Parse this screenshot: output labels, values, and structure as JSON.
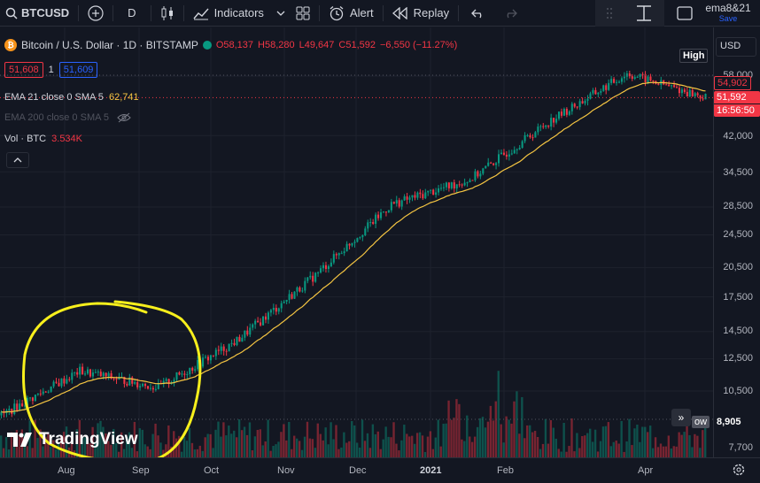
{
  "toolbar": {
    "symbol": "BTCUSD",
    "interval": "D",
    "indicators_label": "Indicators",
    "alert_label": "Alert",
    "replay_label": "Replay",
    "layout_name": "ema8&21",
    "save_label": "Save"
  },
  "legend": {
    "title": "Bitcoin / U.S. Dollar · 1D · BITSTAMP",
    "open": "O58,137",
    "high": "H58,280",
    "low": "L49,647",
    "close": "C51,592",
    "change": "−6,550 (−11.27%)",
    "bid": "51,608",
    "spread": "1",
    "ask": "51,609"
  },
  "indicators": {
    "ema21_label": "EMA 21 close 0 SMA 5",
    "ema21_value": "62,741",
    "ema200_label": "EMA 200 close 0 SMA 5",
    "vol_label": "Vol · BTC",
    "vol_value": "3.534K"
  },
  "price_axis": {
    "currency": "USD",
    "ticks": [
      "58,000",
      "42,000",
      "34,500",
      "28,500",
      "24,500",
      "20,500",
      "17,500",
      "14,500",
      "12,500",
      "10,500",
      "7,700"
    ],
    "high_tag": "High",
    "ema_tag": "54,902",
    "price_tag": "51,592",
    "countdown": "16:56:50",
    "vol_tag": "8,905",
    "vol_tag_prefix": "ow"
  },
  "time_axis": {
    "labels": [
      "Aug",
      "Sep",
      "Oct",
      "Nov",
      "Dec",
      "2021",
      "Feb",
      "Apr"
    ]
  },
  "branding": {
    "logo_text": "TradingView"
  },
  "colors": {
    "up": "#089981",
    "down": "#f23645",
    "ema": "#f5c542",
    "annotation": "#f7ef1c",
    "background": "#131722"
  },
  "chart_data": {
    "type": "candlestick",
    "symbol": "BTCUSD",
    "timeframe": "1D",
    "approx_closes": [
      {
        "date": "2020-07",
        "close": 9200
      },
      {
        "date": "2020-08",
        "close": 11700
      },
      {
        "date": "2020-09",
        "close": 10700
      },
      {
        "date": "2020-10",
        "close": 13800
      },
      {
        "date": "2020-11",
        "close": 19700
      },
      {
        "date": "2020-12",
        "close": 28900
      },
      {
        "date": "2021-01",
        "close": 33100
      },
      {
        "date": "2021-02",
        "close": 45200
      },
      {
        "date": "2021-03",
        "close": 58800
      },
      {
        "date": "2021-04",
        "close": 51592
      }
    ]
  }
}
